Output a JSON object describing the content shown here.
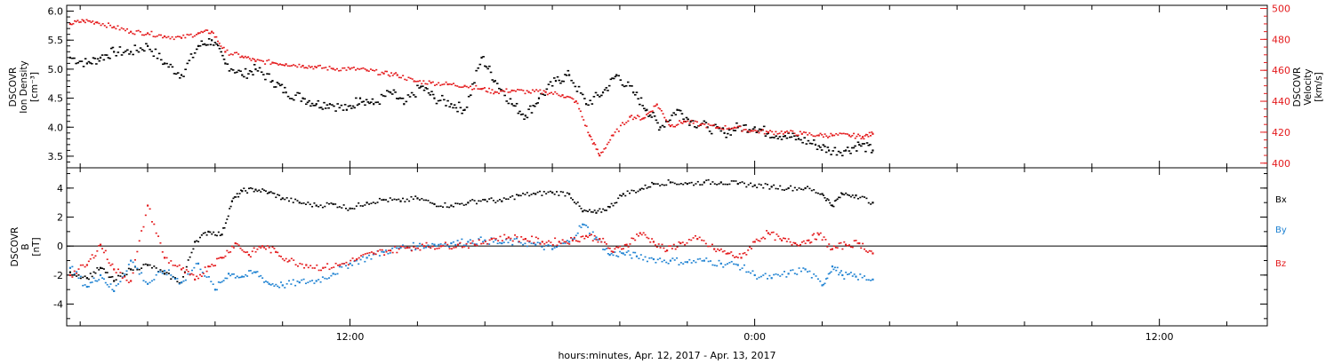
{
  "colors": {
    "black": "#000000",
    "red": "#e41a1c",
    "blue": "#1e82d2",
    "frame": "#000000"
  },
  "chart_data": [
    {
      "type": "scatter",
      "title": "",
      "xlabel": "hours:minutes, Apr. 12, 2017 - Apr. 13, 2017",
      "x_ticks": [
        "12:00",
        "0:00",
        "12:00"
      ],
      "x_range_hours": [
        3.6,
        39.2
      ],
      "ylabel_left": [
        "DSCOVR",
        "Ion Density",
        "[cm⁻³]"
      ],
      "ylabel_right": [
        "DSCOVR",
        "Velocity",
        "[km/s]"
      ],
      "y_left_range": [
        3.3,
        6.1
      ],
      "y_left_ticks": [
        "3.5",
        "4.0",
        "4.5",
        "5.0",
        "5.5",
        "6.0"
      ],
      "y_right_range": [
        397,
        502
      ],
      "y_right_ticks": [
        "400",
        "420",
        "440",
        "460",
        "480",
        "500"
      ],
      "series": [
        {
          "name": "",
          "axis": "left",
          "color": "black",
          "points": [
            [
              3.7,
              5.2
            ],
            [
              4.2,
              5.1
            ],
            [
              4.6,
              5.2
            ],
            [
              5.0,
              5.3
            ],
            [
              5.5,
              5.3
            ],
            [
              6.0,
              5.4
            ],
            [
              6.5,
              5.1
            ],
            [
              7.0,
              4.9
            ],
            [
              7.5,
              5.4
            ],
            [
              7.9,
              5.5
            ],
            [
              8.3,
              5.1
            ],
            [
              8.8,
              4.9
            ],
            [
              9.2,
              5.0
            ],
            [
              9.7,
              4.8
            ],
            [
              10.1,
              4.6
            ],
            [
              10.6,
              4.5
            ],
            [
              11.0,
              4.4
            ],
            [
              11.4,
              4.4
            ],
            [
              11.9,
              4.3
            ],
            [
              12.3,
              4.5
            ],
            [
              12.7,
              4.4
            ],
            [
              13.2,
              4.6
            ],
            [
              13.6,
              4.4
            ],
            [
              14.1,
              4.7
            ],
            [
              14.5,
              4.5
            ],
            [
              15.0,
              4.4
            ],
            [
              15.4,
              4.3
            ],
            [
              15.9,
              5.2
            ],
            [
              16.3,
              4.8
            ],
            [
              16.8,
              4.4
            ],
            [
              17.2,
              4.2
            ],
            [
              17.6,
              4.5
            ],
            [
              18.1,
              4.8
            ],
            [
              18.5,
              4.9
            ],
            [
              19.0,
              4.4
            ],
            [
              19.5,
              4.6
            ],
            [
              19.9,
              4.9
            ],
            [
              20.4,
              4.6
            ],
            [
              20.8,
              4.3
            ],
            [
              21.2,
              4.0
            ],
            [
              21.7,
              4.3
            ],
            [
              22.1,
              4.1
            ],
            [
              22.6,
              4.0
            ],
            [
              23.1,
              3.9
            ],
            [
              23.5,
              4.0
            ],
            [
              24.0,
              4.0
            ],
            [
              24.4,
              3.9
            ],
            [
              24.9,
              3.85
            ],
            [
              25.3,
              3.8
            ],
            [
              25.8,
              3.7
            ],
            [
              26.2,
              3.6
            ],
            [
              26.7,
              3.6
            ],
            [
              27.1,
              3.7
            ],
            [
              27.5,
              3.6
            ]
          ]
        },
        {
          "name": "",
          "axis": "right",
          "color": "red",
          "points": [
            [
              3.7,
              490
            ],
            [
              4.1,
              492
            ],
            [
              4.5,
              491
            ],
            [
              5.0,
              488
            ],
            [
              5.5,
              485
            ],
            [
              6.0,
              484
            ],
            [
              6.5,
              482
            ],
            [
              7.0,
              481
            ],
            [
              7.5,
              484
            ],
            [
              7.9,
              485
            ],
            [
              8.3,
              472
            ],
            [
              8.8,
              469
            ],
            [
              9.2,
              466
            ],
            [
              9.7,
              465
            ],
            [
              10.1,
              464
            ],
            [
              10.6,
              463
            ],
            [
              11.0,
              462
            ],
            [
              11.5,
              461
            ],
            [
              12.0,
              461
            ],
            [
              12.5,
              460
            ],
            [
              13.0,
              458
            ],
            [
              13.4,
              457
            ],
            [
              13.9,
              453
            ],
            [
              14.4,
              452
            ],
            [
              14.9,
              451
            ],
            [
              15.4,
              450
            ],
            [
              15.9,
              448
            ],
            [
              16.3,
              446
            ],
            [
              16.8,
              447
            ],
            [
              17.3,
              446
            ],
            [
              17.8,
              446
            ],
            [
              18.3,
              444
            ],
            [
              18.7,
              440
            ],
            [
              19.1,
              418
            ],
            [
              19.4,
              405
            ],
            [
              19.8,
              418
            ],
            [
              20.3,
              430
            ],
            [
              20.7,
              429
            ],
            [
              21.1,
              438
            ],
            [
              21.5,
              424
            ],
            [
              21.9,
              427
            ],
            [
              22.4,
              425
            ],
            [
              22.9,
              423
            ],
            [
              23.4,
              423
            ],
            [
              23.9,
              421
            ],
            [
              24.4,
              420
            ],
            [
              24.9,
              420
            ],
            [
              25.4,
              419
            ],
            [
              25.9,
              418
            ],
            [
              26.3,
              418
            ],
            [
              26.8,
              418
            ],
            [
              27.2,
              417
            ],
            [
              27.5,
              419
            ]
          ]
        }
      ]
    },
    {
      "type": "scatter",
      "title": "",
      "xlabel": "hours:minutes, Apr. 12, 2017 - Apr. 13, 2017",
      "ylabel_left": [
        "DSCOVR",
        "B",
        "[nT]"
      ],
      "y_range": [
        -5.5,
        5.4
      ],
      "y_ticks": [
        "-4",
        "-2",
        "0",
        "2",
        "4"
      ],
      "series": [
        {
          "name": "Bx",
          "color": "black",
          "points": [
            [
              3.7,
              -1.8
            ],
            [
              4.2,
              -2.2
            ],
            [
              4.6,
              -1.5
            ],
            [
              5.0,
              -2.4
            ],
            [
              5.5,
              -1.6
            ],
            [
              6.0,
              -1.3
            ],
            [
              6.5,
              -1.9
            ],
            [
              7.0,
              -2.5
            ],
            [
              7.4,
              0.3
            ],
            [
              7.8,
              1.0
            ],
            [
              8.2,
              0.8
            ],
            [
              8.5,
              3.1
            ],
            [
              8.8,
              3.8
            ],
            [
              9.2,
              3.9
            ],
            [
              9.6,
              3.7
            ],
            [
              10.0,
              3.3
            ],
            [
              10.5,
              3.0
            ],
            [
              11.0,
              2.8
            ],
            [
              11.5,
              2.9
            ],
            [
              12.0,
              2.6
            ],
            [
              12.5,
              3.0
            ],
            [
              13.0,
              3.2
            ],
            [
              13.5,
              3.1
            ],
            [
              14.0,
              3.3
            ],
            [
              14.5,
              2.9
            ],
            [
              15.0,
              2.8
            ],
            [
              15.5,
              3.0
            ],
            [
              16.0,
              3.2
            ],
            [
              16.5,
              3.1
            ],
            [
              17.0,
              3.5
            ],
            [
              17.5,
              3.6
            ],
            [
              18.0,
              3.7
            ],
            [
              18.5,
              3.6
            ],
            [
              18.9,
              2.4
            ],
            [
              19.3,
              2.3
            ],
            [
              19.7,
              2.7
            ],
            [
              20.1,
              3.6
            ],
            [
              20.6,
              3.9
            ],
            [
              21.0,
              4.3
            ],
            [
              21.5,
              4.4
            ],
            [
              22.0,
              4.3
            ],
            [
              22.5,
              4.4
            ],
            [
              23.0,
              4.4
            ],
            [
              23.5,
              4.3
            ],
            [
              24.0,
              4.2
            ],
            [
              24.5,
              4.1
            ],
            [
              25.0,
              4.0
            ],
            [
              25.5,
              4.0
            ],
            [
              26.0,
              3.6
            ],
            [
              26.3,
              2.8
            ],
            [
              26.6,
              3.6
            ],
            [
              27.0,
              3.5
            ],
            [
              27.5,
              3.0
            ]
          ]
        },
        {
          "name": "By",
          "color": "blue",
          "points": [
            [
              3.7,
              -1.5
            ],
            [
              4.2,
              -2.8
            ],
            [
              4.6,
              -2.0
            ],
            [
              5.0,
              -3.1
            ],
            [
              5.5,
              -1.0
            ],
            [
              6.0,
              -2.6
            ],
            [
              6.5,
              -1.7
            ],
            [
              7.0,
              -2.5
            ],
            [
              7.5,
              -1.2
            ],
            [
              8.0,
              -3.0
            ],
            [
              8.4,
              -1.9
            ],
            [
              8.8,
              -2.1
            ],
            [
              9.2,
              -1.8
            ],
            [
              9.6,
              -2.6
            ],
            [
              10.0,
              -2.7
            ],
            [
              10.5,
              -2.5
            ],
            [
              11.0,
              -2.4
            ],
            [
              11.5,
              -1.9
            ],
            [
              12.0,
              -1.2
            ],
            [
              12.5,
              -0.8
            ],
            [
              13.0,
              -0.4
            ],
            [
              13.5,
              -0.1
            ],
            [
              14.0,
              0.0
            ],
            [
              14.5,
              0.1
            ],
            [
              15.0,
              0.2
            ],
            [
              15.5,
              0.3
            ],
            [
              16.0,
              0.4
            ],
            [
              16.5,
              0.2
            ],
            [
              17.0,
              0.3
            ],
            [
              17.5,
              0.1
            ],
            [
              18.0,
              -0.2
            ],
            [
              18.5,
              0.3
            ],
            [
              18.9,
              1.5
            ],
            [
              19.3,
              0.6
            ],
            [
              19.7,
              -0.6
            ],
            [
              20.1,
              -0.5
            ],
            [
              20.5,
              -0.7
            ],
            [
              21.0,
              -0.9
            ],
            [
              21.5,
              -1.0
            ],
            [
              22.0,
              -1.1
            ],
            [
              22.5,
              -1.0
            ],
            [
              23.0,
              -1.2
            ],
            [
              23.5,
              -1.3
            ],
            [
              24.0,
              -2.0
            ],
            [
              24.5,
              -2.2
            ],
            [
              25.0,
              -1.9
            ],
            [
              25.5,
              -1.6
            ],
            [
              26.0,
              -2.7
            ],
            [
              26.3,
              -1.4
            ],
            [
              26.6,
              -2.0
            ],
            [
              27.0,
              -2.1
            ],
            [
              27.5,
              -2.3
            ]
          ]
        },
        {
          "name": "Bz",
          "color": "red",
          "points": [
            [
              3.7,
              -2.0
            ],
            [
              4.2,
              -1.3
            ],
            [
              4.6,
              0.1
            ],
            [
              5.0,
              -1.6
            ],
            [
              5.5,
              -2.4
            ],
            [
              6.0,
              2.8
            ],
            [
              6.5,
              -0.8
            ],
            [
              7.0,
              -1.6
            ],
            [
              7.4,
              -2.3
            ],
            [
              7.8,
              -1.4
            ],
            [
              8.2,
              -0.8
            ],
            [
              8.6,
              0.2
            ],
            [
              9.0,
              -0.6
            ],
            [
              9.4,
              0.0
            ],
            [
              9.8,
              -0.4
            ],
            [
              10.2,
              -1.0
            ],
            [
              10.7,
              -1.3
            ],
            [
              11.2,
              -1.5
            ],
            [
              11.7,
              -1.3
            ],
            [
              12.2,
              -0.9
            ],
            [
              12.7,
              -0.5
            ],
            [
              13.2,
              -0.3
            ],
            [
              13.7,
              -0.1
            ],
            [
              14.2,
              0.0
            ],
            [
              14.7,
              0.0
            ],
            [
              15.2,
              0.1
            ],
            [
              15.7,
              0.1
            ],
            [
              16.2,
              0.5
            ],
            [
              16.7,
              0.6
            ],
            [
              17.2,
              0.5
            ],
            [
              17.7,
              0.3
            ],
            [
              18.2,
              0.3
            ],
            [
              18.6,
              0.4
            ],
            [
              19.0,
              0.7
            ],
            [
              19.4,
              0.5
            ],
            [
              19.8,
              -0.4
            ],
            [
              20.2,
              0.1
            ],
            [
              20.6,
              0.9
            ],
            [
              21.0,
              0.3
            ],
            [
              21.4,
              -0.3
            ],
            [
              21.8,
              0.2
            ],
            [
              22.3,
              0.5
            ],
            [
              22.8,
              -0.2
            ],
            [
              23.2,
              -0.5
            ],
            [
              23.6,
              -0.8
            ],
            [
              24.0,
              0.3
            ],
            [
              24.4,
              0.9
            ],
            [
              24.8,
              0.4
            ],
            [
              25.2,
              0.2
            ],
            [
              25.6,
              0.4
            ],
            [
              25.9,
              0.8
            ],
            [
              26.3,
              -0.2
            ],
            [
              26.7,
              0.1
            ],
            [
              27.1,
              0.2
            ],
            [
              27.5,
              -0.5
            ]
          ]
        }
      ]
    }
  ]
}
